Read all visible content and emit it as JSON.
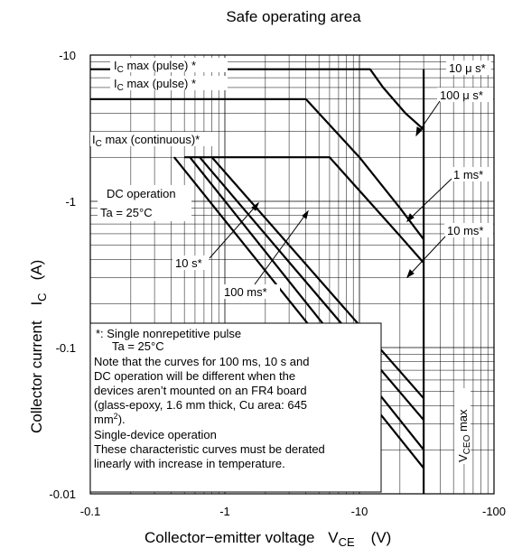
{
  "chart_data": {
    "type": "line",
    "title": "Safe operating area",
    "xscale": "log",
    "yscale": "log",
    "xlim": [
      -0.1,
      -100
    ],
    "ylim": [
      -0.01,
      -10
    ],
    "grid": true,
    "x_ticks": [
      "-0.1",
      "-1",
      "-10",
      "-100"
    ],
    "y_ticks": [
      "-10",
      "-1",
      "-0.1",
      "-0.01"
    ],
    "xlabel": {
      "main": "Collector−emitter voltage",
      "sym": "V",
      "sub": "CE",
      "unit": "(V)"
    },
    "ylabel": {
      "main": "Collector current",
      "sym": "I",
      "sub": "C",
      "unit": "(A)"
    },
    "series": [
      {
        "name": "10 μ s*",
        "points": [
          [
            -0.1,
            -8
          ],
          [
            -12,
            -8
          ],
          [
            -15,
            -6
          ],
          [
            -22,
            -4
          ],
          [
            -30,
            -3.1
          ]
        ]
      },
      {
        "name": "100 μ s*",
        "points": [
          [
            -0.1,
            -5
          ],
          [
            -4,
            -5
          ],
          [
            -10,
            -2
          ],
          [
            -20,
            -0.9
          ],
          [
            -30,
            -0.55
          ]
        ]
      },
      {
        "name": "1 ms*",
        "points": [
          [
            -0.5,
            -2
          ],
          [
            -6,
            -2
          ],
          [
            -20,
            -0.58
          ],
          [
            -30,
            -0.38
          ]
        ]
      },
      {
        "name": "10 ms*",
        "points": [
          [
            -0.8,
            -2
          ],
          [
            -30,
            -0.045
          ]
        ]
      },
      {
        "name": "100 ms*",
        "points": [
          [
            -0.65,
            -2
          ],
          [
            -30,
            -0.032
          ]
        ]
      },
      {
        "name": "10 s*",
        "points": [
          [
            -0.55,
            -2
          ],
          [
            -30,
            -0.02
          ]
        ]
      },
      {
        "name": "DC operation Ta = 25°C",
        "points": [
          [
            -0.42,
            -2
          ],
          [
            -30,
            -0.015
          ]
        ]
      },
      {
        "name": "VCEO max",
        "points": [
          [
            -30,
            -8
          ],
          [
            -30,
            -0.01
          ]
        ]
      }
    ],
    "annotations": {
      "ic_pulse_1": {
        "main": "I",
        "sub": "C",
        "rest": " max (pulse) *"
      },
      "ic_pulse_2": {
        "main": "I",
        "sub": "C",
        "rest": " max (pulse) *"
      },
      "ic_continuous": {
        "main": "I",
        "sub": "C",
        "rest": " max (continuous)*"
      },
      "dc_line1": "DC operation",
      "dc_line2": "Ta = 25°C",
      "t10us": "10 μ s*",
      "t100us": "100 μ s*",
      "t1ms": "1 ms*",
      "t10ms": "10 ms*",
      "t10s": "10 s*",
      "t100ms": "100 ms*",
      "vceo": {
        "main": "V",
        "sub": "CEO",
        "rest": " max"
      }
    },
    "notes": [
      "*:  Single nonrepetitive pulse",
      "      Ta = 25°C",
      "Note that the curves for 100 ms, 10 s and",
      "DC operation will be different when the",
      "devices aren’t mounted on an FR4 board",
      "(glass-epoxy, 1.6 mm thick, Cu area: 645",
      "mm",
      "2",
      ").",
      "Single-device operation",
      "These characteristic curves must be derated",
      "linearly with increase in temperature."
    ]
  }
}
